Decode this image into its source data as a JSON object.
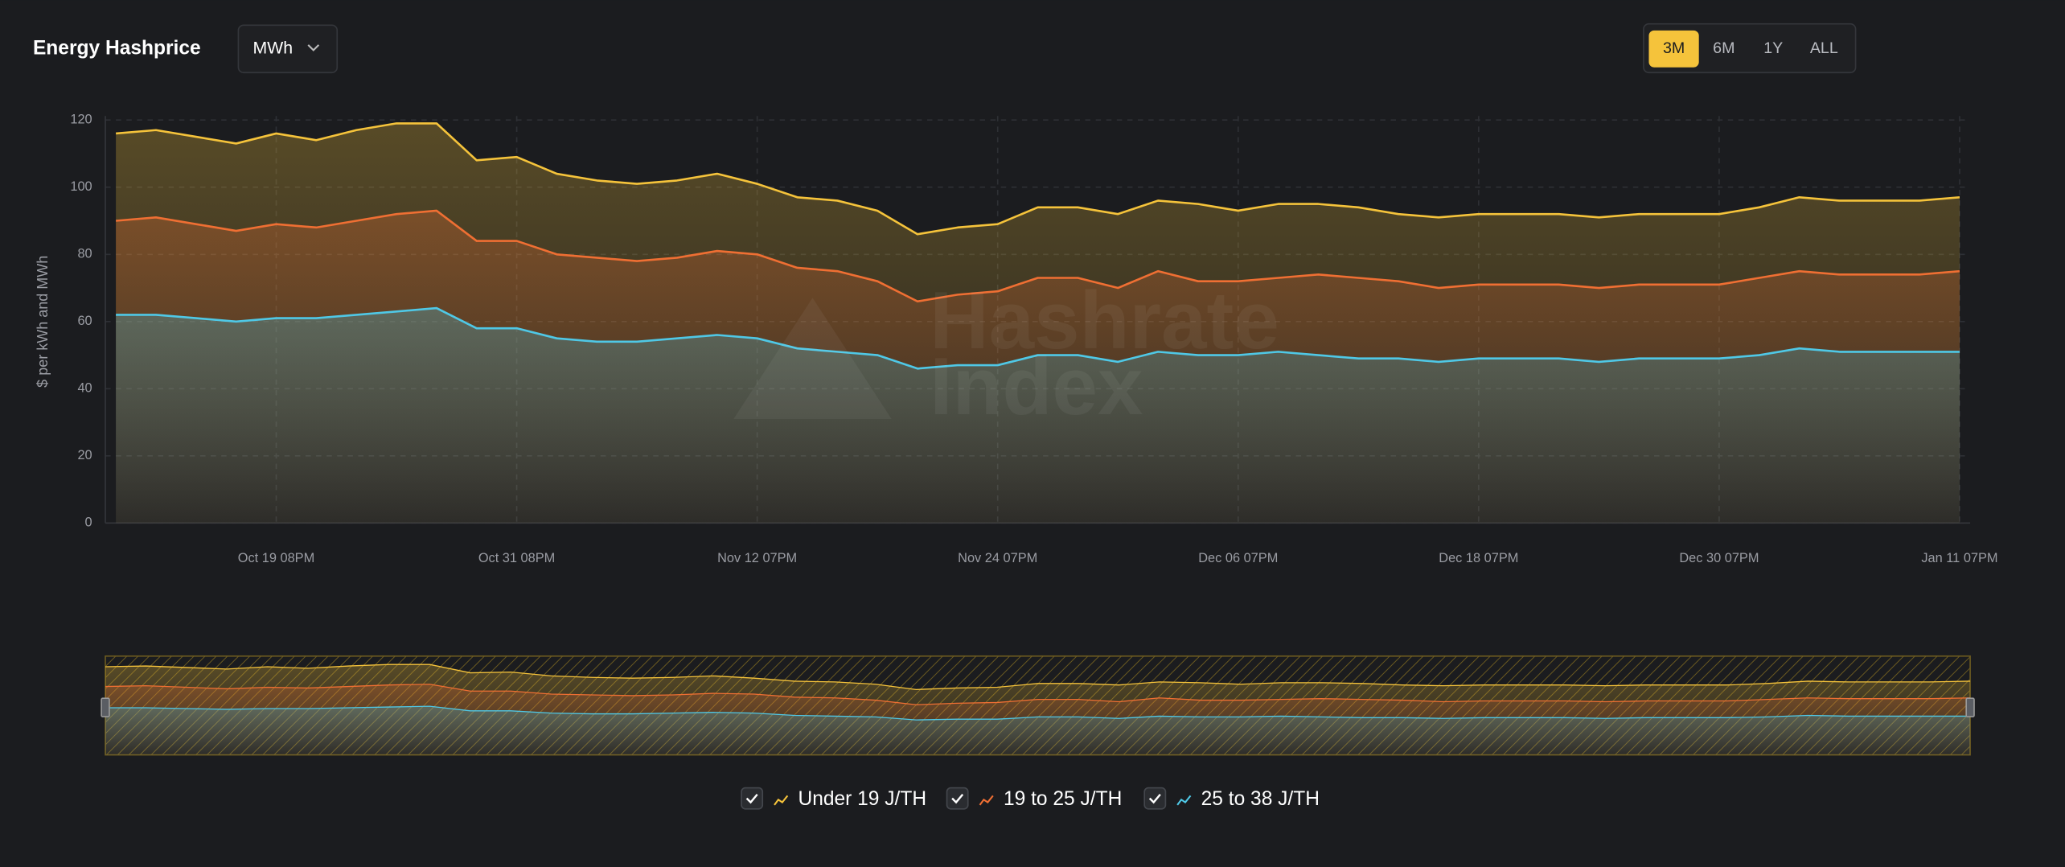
{
  "header": {
    "title": "Energy Hashprice",
    "unit": "MWh",
    "ranges": [
      "3M",
      "6M",
      "1Y",
      "ALL"
    ],
    "active_range": "3M"
  },
  "watermark": [
    "Hashrate",
    "Index"
  ],
  "chart_data": {
    "type": "area",
    "y_label": "$ per kWh and MWh",
    "categories": [
      null,
      null,
      null,
      null,
      "Oct 19 08PM",
      null,
      null,
      null,
      null,
      null,
      "Oct 31 08PM",
      null,
      null,
      null,
      null,
      null,
      "Nov 12 07PM",
      null,
      null,
      null,
      null,
      null,
      "Nov 24 07PM",
      null,
      null,
      null,
      null,
      null,
      "Dec 06 07PM",
      null,
      null,
      null,
      null,
      null,
      "Dec 18 07PM",
      null,
      null,
      null,
      null,
      null,
      "Dec 30 07PM",
      null,
      null,
      null,
      null,
      null,
      "Jan 11 07PM"
    ],
    "series": [
      {
        "name": "Under 19 J/TH",
        "color": "#f5c33b",
        "values": [
          116,
          117,
          115,
          113,
          116,
          114,
          117,
          119,
          119,
          108,
          109,
          104,
          102,
          101,
          102,
          104,
          101,
          97,
          96,
          93,
          86,
          88,
          89,
          94,
          94,
          92,
          96,
          95,
          93,
          95,
          95,
          94,
          92,
          91,
          92,
          92,
          92,
          91,
          92,
          92,
          92,
          94,
          97,
          96,
          96,
          96,
          97
        ]
      },
      {
        "name": "19 to 25 J/TH",
        "color": "#ef6f33",
        "values": [
          90,
          91,
          89,
          87,
          89,
          88,
          90,
          92,
          93,
          84,
          84,
          80,
          79,
          78,
          79,
          81,
          80,
          76,
          75,
          72,
          66,
          68,
          69,
          73,
          73,
          70,
          75,
          72,
          72,
          73,
          74,
          73,
          72,
          70,
          71,
          71,
          71,
          70,
          71,
          71,
          71,
          73,
          75,
          74,
          74,
          74,
          75
        ]
      },
      {
        "name": "25 to 38 J/TH",
        "color": "#4fc8e6",
        "values": [
          62,
          62,
          61,
          60,
          61,
          61,
          62,
          63,
          64,
          58,
          58,
          55,
          54,
          54,
          55,
          56,
          55,
          52,
          51,
          50,
          46,
          47,
          47,
          50,
          50,
          48,
          51,
          50,
          50,
          51,
          50,
          49,
          49,
          48,
          49,
          49,
          49,
          48,
          49,
          49,
          49,
          50,
          52,
          51,
          51,
          51,
          51
        ]
      }
    ],
    "ylim": [
      0,
      120
    ],
    "yticks": [
      0,
      20,
      40,
      60,
      80,
      100,
      120
    ],
    "grid": true
  }
}
